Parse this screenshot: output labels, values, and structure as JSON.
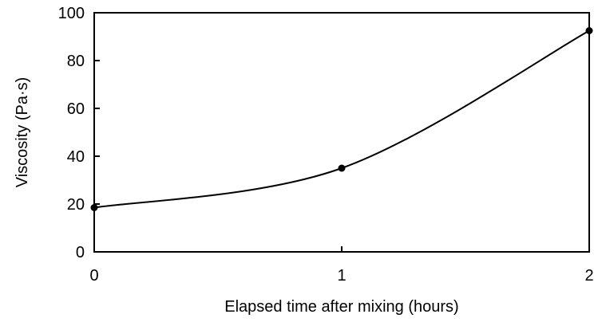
{
  "chart_data": {
    "type": "line",
    "title": "",
    "xlabel": "Elapsed time after mixing (hours)",
    "ylabel": "Viscosity (Pa·s)",
    "xlim": [
      0,
      2
    ],
    "ylim": [
      0,
      100
    ],
    "xticks": [
      0,
      1,
      2
    ],
    "yticks": [
      0,
      20,
      40,
      60,
      80,
      100
    ],
    "xtick_labels": [
      "0",
      "1",
      "2"
    ],
    "ytick_labels": [
      "0",
      "20",
      "40",
      "60",
      "80",
      "100"
    ],
    "grid": false,
    "smooth": true,
    "series": [
      {
        "x": [
          0,
          1,
          2
        ],
        "y": [
          18.5,
          35,
          92.5
        ],
        "color": "#000000",
        "marker": "circle"
      }
    ]
  }
}
